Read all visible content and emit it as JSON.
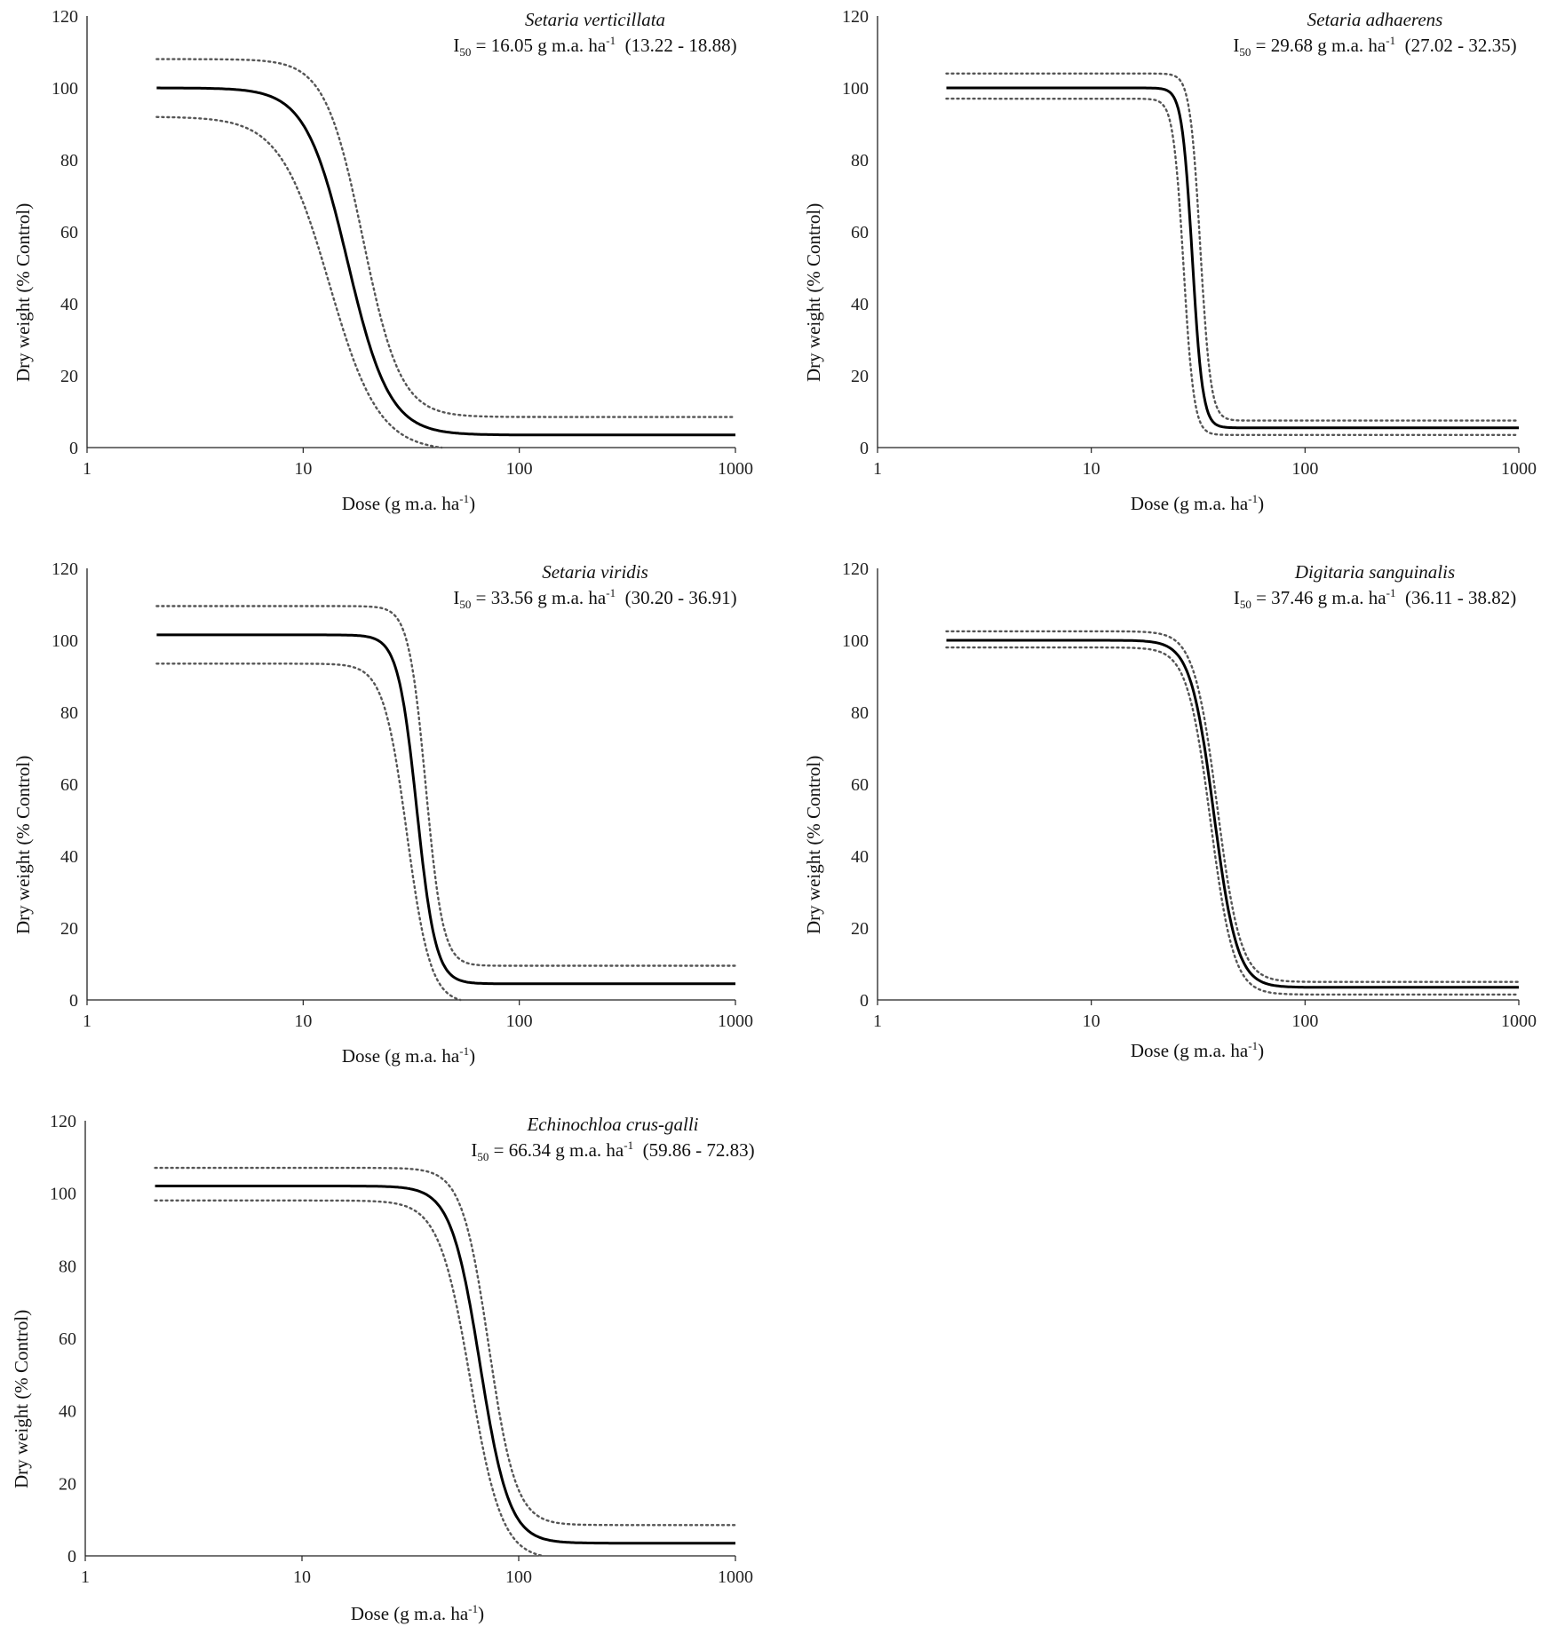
{
  "common": {
    "xlabel_main": "Dose (g m.a. ha",
    "xlabel_sup": "-1",
    "xlabel_tail": ")",
    "ylabel": "Dry weight (% Control)",
    "stat_prefix": "I",
    "stat_sub": "50",
    "stat_units": "g m.a. ha",
    "stat_sup": "-1"
  },
  "chart_data": [
    {
      "type": "line",
      "title": "Setaria verticillata",
      "i50": "16.05",
      "ci": "(13.22 - 18.88)",
      "xscale": "log",
      "xlim": [
        1,
        1000
      ],
      "ylim": [
        0,
        120
      ],
      "xticks": [
        "1",
        "10",
        "100",
        "1000"
      ],
      "yticks": [
        "0",
        "20",
        "40",
        "60",
        "80",
        "100",
        "120"
      ],
      "series": [
        {
          "style": "solid",
          "upper": 100,
          "lower": 3.5,
          "ed50": 16.05,
          "slope": 4.5
        },
        {
          "style": "dotted",
          "upper": 108,
          "lower": 8.5,
          "ed50": 18.88,
          "slope": 5.0
        },
        {
          "style": "dotted",
          "upper": 92,
          "lower": -1,
          "ed50": 13.22,
          "slope": 3.8
        }
      ]
    },
    {
      "type": "line",
      "title": "Setaria adhaerens",
      "i50": "29.68",
      "ci": "(27.02 - 32.35)",
      "xscale": "log",
      "xlim": [
        1,
        1000
      ],
      "ylim": [
        0,
        120
      ],
      "xticks": [
        "1",
        "10",
        "100",
        "1000"
      ],
      "yticks": [
        "0",
        "20",
        "40",
        "60",
        "80",
        "100",
        "120"
      ],
      "series": [
        {
          "style": "solid",
          "upper": 100,
          "lower": 5.5,
          "ed50": 29.68,
          "slope": 18
        },
        {
          "style": "dotted",
          "upper": 104,
          "lower": 7.5,
          "ed50": 32.35,
          "slope": 18
        },
        {
          "style": "dotted",
          "upper": 97,
          "lower": 3.5,
          "ed50": 27.02,
          "slope": 18
        }
      ]
    },
    {
      "type": "line",
      "title": "Setaria viridis",
      "i50": "33.56",
      "ci": "(30.20 - 36.91)",
      "xscale": "log",
      "xlim": [
        1,
        1000
      ],
      "ylim": [
        0,
        120
      ],
      "xticks": [
        "1",
        "10",
        "100",
        "1000"
      ],
      "yticks": [
        "0",
        "20",
        "40",
        "60",
        "80",
        "100",
        "120"
      ],
      "series": [
        {
          "style": "solid",
          "upper": 101.5,
          "lower": 4.5,
          "ed50": 33.56,
          "slope": 10
        },
        {
          "style": "dotted",
          "upper": 109.5,
          "lower": 9.5,
          "ed50": 36.91,
          "slope": 11
        },
        {
          "style": "dotted",
          "upper": 93.5,
          "lower": -1,
          "ed50": 30.2,
          "slope": 8
        }
      ]
    },
    {
      "type": "line",
      "title": "Digitaria sanguinalis",
      "i50": "37.46",
      "ci": "(36.11 - 38.82)",
      "xscale": "log",
      "xlim": [
        1,
        1000
      ],
      "ylim": [
        0,
        120
      ],
      "xticks": [
        "1",
        "10",
        "100",
        "1000"
      ],
      "yticks": [
        "0",
        "20",
        "40",
        "60",
        "80",
        "100",
        "120"
      ],
      "series": [
        {
          "style": "solid",
          "upper": 100,
          "lower": 3.5,
          "ed50": 37.46,
          "slope": 8
        },
        {
          "style": "dotted",
          "upper": 102.5,
          "lower": 5,
          "ed50": 38.82,
          "slope": 8
        },
        {
          "style": "dotted",
          "upper": 98,
          "lower": 1.5,
          "ed50": 36.11,
          "slope": 8
        }
      ]
    },
    {
      "type": "line",
      "title": "Echinochloa crus-galli",
      "i50": "66.34",
      "ci": "(59.86 - 72.83)",
      "xscale": "log",
      "xlim": [
        1,
        1000
      ],
      "ylim": [
        0,
        120
      ],
      "xticks": [
        "1",
        "10",
        "100",
        "1000"
      ],
      "yticks": [
        "0",
        "20",
        "40",
        "60",
        "80",
        "100",
        "120"
      ],
      "series": [
        {
          "style": "solid",
          "upper": 102,
          "lower": 3.5,
          "ed50": 66.34,
          "slope": 6.5
        },
        {
          "style": "dotted",
          "upper": 107,
          "lower": 8.5,
          "ed50": 72.83,
          "slope": 7
        },
        {
          "style": "dotted",
          "upper": 98,
          "lower": -1,
          "ed50": 59.86,
          "slope": 6
        }
      ]
    }
  ]
}
